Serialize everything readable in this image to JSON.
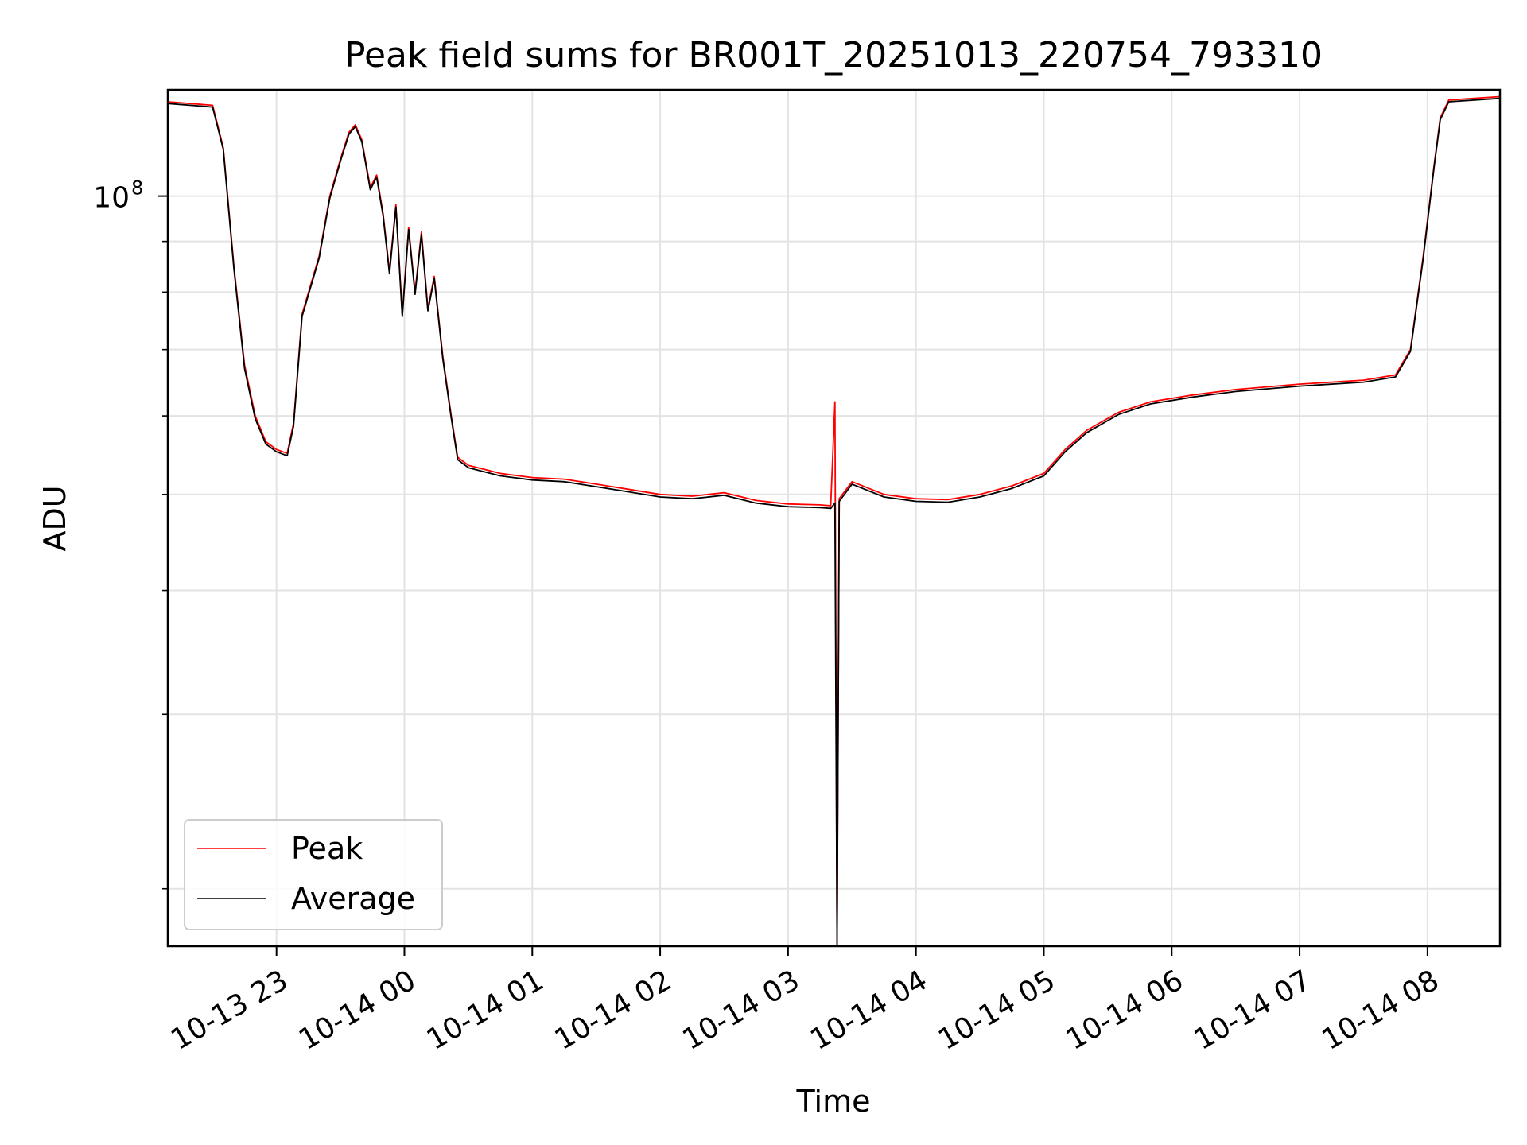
{
  "chart_data": {
    "type": "line",
    "title": "Peak field sums for BR001T_20251013_220754_793310",
    "xlabel": "Time",
    "ylabel": "ADU",
    "y_scale": "log",
    "ylim": [
      17500000,
      128000000
    ],
    "xlim": [
      "2025-10-13T22:09:00",
      "2025-10-14T08:34:00"
    ],
    "x_ticks": [
      {
        "value": "2025-10-13T23:00:00",
        "label": "10-13 23"
      },
      {
        "value": "2025-10-14T00:00:00",
        "label": "10-14 00"
      },
      {
        "value": "2025-10-14T01:00:00",
        "label": "10-14 01"
      },
      {
        "value": "2025-10-14T02:00:00",
        "label": "10-14 02"
      },
      {
        "value": "2025-10-14T03:00:00",
        "label": "10-14 03"
      },
      {
        "value": "2025-10-14T04:00:00",
        "label": "10-14 04"
      },
      {
        "value": "2025-10-14T05:00:00",
        "label": "10-14 05"
      },
      {
        "value": "2025-10-14T06:00:00",
        "label": "10-14 06"
      },
      {
        "value": "2025-10-14T07:00:00",
        "label": "10-14 07"
      },
      {
        "value": "2025-10-14T08:00:00",
        "label": "10-14 08"
      }
    ],
    "y_major_ticks": [
      {
        "value": 100000000,
        "label_base": "10",
        "label_exp": "8"
      }
    ],
    "y_minor_ticks": [
      20000000,
      30000000,
      40000000,
      50000000,
      60000000,
      70000000,
      80000000,
      90000000
    ],
    "grid": true,
    "legend": {
      "position": "lower-left"
    },
    "series": [
      {
        "name": "Peak",
        "color": "#ff0000",
        "points": [
          [
            "2025-10-13T22:09:00",
            124500000
          ],
          [
            "2025-10-13T22:30:00",
            123500000
          ],
          [
            "2025-10-13T22:35:00",
            112000000
          ],
          [
            "2025-10-13T22:40:00",
            85000000
          ],
          [
            "2025-10-13T22:45:00",
            67500000
          ],
          [
            "2025-10-13T22:50:00",
            60000000
          ],
          [
            "2025-10-13T22:55:00",
            56500000
          ],
          [
            "2025-10-13T23:00:00",
            55500000
          ],
          [
            "2025-10-13T23:05:00",
            55000000
          ],
          [
            "2025-10-13T23:08:00",
            59000000
          ],
          [
            "2025-10-13T23:12:00",
            76000000
          ],
          [
            "2025-10-13T23:20:00",
            87000000
          ],
          [
            "2025-10-13T23:25:00",
            100000000
          ],
          [
            "2025-10-13T23:30:00",
            109000000
          ],
          [
            "2025-10-13T23:34:00",
            116000000
          ],
          [
            "2025-10-13T23:37:00",
            118000000
          ],
          [
            "2025-10-13T23:40:00",
            114000000
          ],
          [
            "2025-10-13T23:44:00",
            102000000
          ],
          [
            "2025-10-13T23:47:00",
            105000000
          ],
          [
            "2025-10-13T23:50:00",
            96000000
          ],
          [
            "2025-10-13T23:53:00",
            84000000
          ],
          [
            "2025-10-13T23:56:00",
            98000000
          ],
          [
            "2025-10-13T23:59:00",
            76000000
          ],
          [
            "2025-10-14T00:02:00",
            93000000
          ],
          [
            "2025-10-14T00:05:00",
            80000000
          ],
          [
            "2025-10-14T00:08:00",
            92000000
          ],
          [
            "2025-10-14T00:11:00",
            77000000
          ],
          [
            "2025-10-14T00:14:00",
            83000000
          ],
          [
            "2025-10-14T00:18:00",
            69000000
          ],
          [
            "2025-10-14T00:22:00",
            60000000
          ],
          [
            "2025-10-14T00:25:00",
            54500000
          ],
          [
            "2025-10-14T00:30:00",
            53500000
          ],
          [
            "2025-10-14T00:45:00",
            52500000
          ],
          [
            "2025-10-14T01:00:00",
            52000000
          ],
          [
            "2025-10-14T01:15:00",
            51800000
          ],
          [
            "2025-10-14T01:30:00",
            51200000
          ],
          [
            "2025-10-14T01:45:00",
            50600000
          ],
          [
            "2025-10-14T02:00:00",
            50000000
          ],
          [
            "2025-10-14T02:15:00",
            49800000
          ],
          [
            "2025-10-14T02:30:00",
            50200000
          ],
          [
            "2025-10-14T02:45:00",
            49300000
          ],
          [
            "2025-10-14T03:00:00",
            48900000
          ],
          [
            "2025-10-14T03:15:00",
            48800000
          ],
          [
            "2025-10-14T03:20:00",
            48700000
          ],
          [
            "2025-10-14T03:22:00",
            62000000
          ],
          [
            "2025-10-14T03:23:00",
            17500000
          ],
          [
            "2025-10-14T03:24:00",
            49500000
          ],
          [
            "2025-10-14T03:30:00",
            51500000
          ],
          [
            "2025-10-14T03:45:00",
            50000000
          ],
          [
            "2025-10-14T04:00:00",
            49500000
          ],
          [
            "2025-10-14T04:15:00",
            49400000
          ],
          [
            "2025-10-14T04:30:00",
            50000000
          ],
          [
            "2025-10-14T04:45:00",
            51000000
          ],
          [
            "2025-10-14T05:00:00",
            52500000
          ],
          [
            "2025-10-14T05:10:00",
            55500000
          ],
          [
            "2025-10-14T05:20:00",
            58000000
          ],
          [
            "2025-10-14T05:35:00",
            60500000
          ],
          [
            "2025-10-14T05:50:00",
            62000000
          ],
          [
            "2025-10-14T06:10:00",
            63000000
          ],
          [
            "2025-10-14T06:30:00",
            63800000
          ],
          [
            "2025-10-14T07:00:00",
            64600000
          ],
          [
            "2025-10-14T07:30:00",
            65200000
          ],
          [
            "2025-10-14T07:45:00",
            66000000
          ],
          [
            "2025-10-14T07:52:00",
            70000000
          ],
          [
            "2025-10-14T07:58:00",
            87000000
          ],
          [
            "2025-10-14T08:03:00",
            107000000
          ],
          [
            "2025-10-14T08:06:00",
            120000000
          ],
          [
            "2025-10-14T08:10:00",
            125000000
          ],
          [
            "2025-10-14T08:34:00",
            126000000
          ]
        ]
      },
      {
        "name": "Average",
        "color": "#000000",
        "points": [
          [
            "2025-10-13T22:09:00",
            124000000
          ],
          [
            "2025-10-13T22:30:00",
            123000000
          ],
          [
            "2025-10-13T22:35:00",
            111500000
          ],
          [
            "2025-10-13T22:40:00",
            84500000
          ],
          [
            "2025-10-13T22:45:00",
            67000000
          ],
          [
            "2025-10-13T22:50:00",
            59600000
          ],
          [
            "2025-10-13T22:55:00",
            56200000
          ],
          [
            "2025-10-13T23:00:00",
            55200000
          ],
          [
            "2025-10-13T23:05:00",
            54700000
          ],
          [
            "2025-10-13T23:08:00",
            58600000
          ],
          [
            "2025-10-13T23:12:00",
            75600000
          ],
          [
            "2025-10-13T23:20:00",
            86600000
          ],
          [
            "2025-10-13T23:25:00",
            99500000
          ],
          [
            "2025-10-13T23:30:00",
            108500000
          ],
          [
            "2025-10-13T23:34:00",
            115500000
          ],
          [
            "2025-10-13T23:37:00",
            117500000
          ],
          [
            "2025-10-13T23:40:00",
            113500000
          ],
          [
            "2025-10-13T23:44:00",
            101500000
          ],
          [
            "2025-10-13T23:47:00",
            104500000
          ],
          [
            "2025-10-13T23:50:00",
            95500000
          ],
          [
            "2025-10-13T23:53:00",
            83500000
          ],
          [
            "2025-10-13T23:56:00",
            97500000
          ],
          [
            "2025-10-13T23:59:00",
            75600000
          ],
          [
            "2025-10-14T00:02:00",
            92500000
          ],
          [
            "2025-10-14T00:05:00",
            79600000
          ],
          [
            "2025-10-14T00:08:00",
            91500000
          ],
          [
            "2025-10-14T00:11:00",
            76600000
          ],
          [
            "2025-10-14T00:14:00",
            82600000
          ],
          [
            "2025-10-14T00:18:00",
            68600000
          ],
          [
            "2025-10-14T00:22:00",
            59700000
          ],
          [
            "2025-10-14T00:25:00",
            54200000
          ],
          [
            "2025-10-14T00:30:00",
            53200000
          ],
          [
            "2025-10-14T00:45:00",
            52200000
          ],
          [
            "2025-10-14T01:00:00",
            51700000
          ],
          [
            "2025-10-14T01:15:00",
            51500000
          ],
          [
            "2025-10-14T01:30:00",
            50900000
          ],
          [
            "2025-10-14T01:45:00",
            50300000
          ],
          [
            "2025-10-14T02:00:00",
            49700000
          ],
          [
            "2025-10-14T02:15:00",
            49500000
          ],
          [
            "2025-10-14T02:30:00",
            49900000
          ],
          [
            "2025-10-14T02:45:00",
            49000000
          ],
          [
            "2025-10-14T03:00:00",
            48600000
          ],
          [
            "2025-10-14T03:15:00",
            48500000
          ],
          [
            "2025-10-14T03:20:00",
            48400000
          ],
          [
            "2025-10-14T03:22:00",
            49000000
          ],
          [
            "2025-10-14T03:23:00",
            17500000
          ],
          [
            "2025-10-14T03:24:00",
            49200000
          ],
          [
            "2025-10-14T03:30:00",
            51200000
          ],
          [
            "2025-10-14T03:45:00",
            49700000
          ],
          [
            "2025-10-14T04:00:00",
            49200000
          ],
          [
            "2025-10-14T04:15:00",
            49100000
          ],
          [
            "2025-10-14T04:30:00",
            49700000
          ],
          [
            "2025-10-14T04:45:00",
            50700000
          ],
          [
            "2025-10-14T05:00:00",
            52200000
          ],
          [
            "2025-10-14T05:10:00",
            55200000
          ],
          [
            "2025-10-14T05:20:00",
            57700000
          ],
          [
            "2025-10-14T05:35:00",
            60200000
          ],
          [
            "2025-10-14T05:50:00",
            61700000
          ],
          [
            "2025-10-14T06:10:00",
            62700000
          ],
          [
            "2025-10-14T06:30:00",
            63500000
          ],
          [
            "2025-10-14T07:00:00",
            64300000
          ],
          [
            "2025-10-14T07:30:00",
            64900000
          ],
          [
            "2025-10-14T07:45:00",
            65700000
          ],
          [
            "2025-10-14T07:52:00",
            69700000
          ],
          [
            "2025-10-14T07:58:00",
            86500000
          ],
          [
            "2025-10-14T08:03:00",
            106500000
          ],
          [
            "2025-10-14T08:06:00",
            119500000
          ],
          [
            "2025-10-14T08:10:00",
            124500000
          ],
          [
            "2025-10-14T08:34:00",
            125500000
          ]
        ]
      }
    ]
  }
}
